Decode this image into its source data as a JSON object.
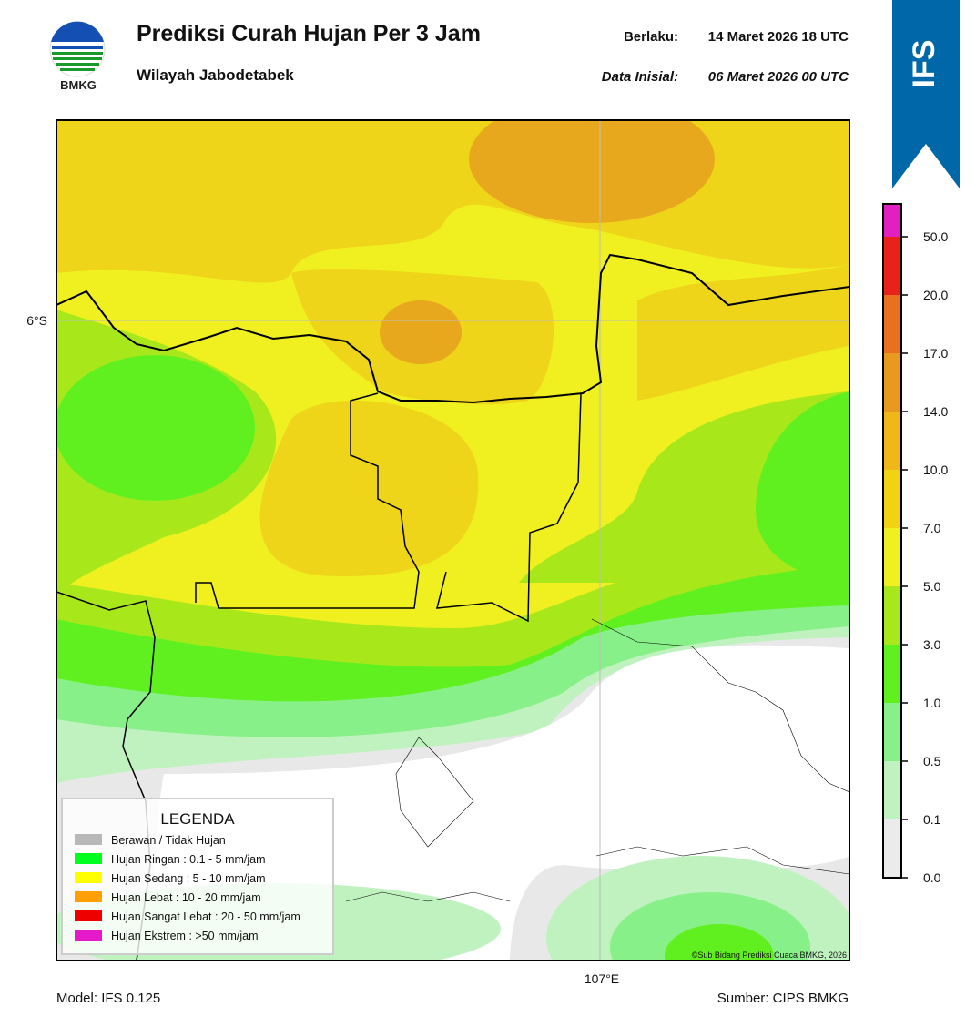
{
  "header": {
    "logo_text": "BMKG",
    "title": "Prediksi Curah Hujan Per 3 Jam",
    "subtitle": "Wilayah Jabodetabek",
    "valid_label": "Berlaku:",
    "valid_time": "14 Maret 2026 18 UTC",
    "init_label": "Data Inisial:",
    "init_time": "06 Maret 2026 00 UTC",
    "badge": "IFS"
  },
  "map": {
    "lat_label": "6°S",
    "lon_label": "107°E",
    "credit": "©Sub Bidang Prediksi Cuaca BMKG, 2026"
  },
  "legend": {
    "title": "LEGENDA",
    "items": [
      {
        "label": "Berawan / Tidak Hujan",
        "color": "#b8b8b8"
      },
      {
        "label": "Hujan Ringan : 0.1 - 5 mm/jam",
        "color": "#00ff1e"
      },
      {
        "label": "Hujan Sedang : 5 - 10 mm/jam",
        "color": "#ffff00"
      },
      {
        "label": "Hujan Lebat : 10 - 20 mm/jam",
        "color": "#ff9f00"
      },
      {
        "label": "Hujan Sangat Lebat : 20 - 50 mm/jam",
        "color": "#ee0000"
      },
      {
        "label": "Hujan Ekstrem : >50 mm/jam",
        "color": "#e619c8"
      }
    ]
  },
  "colorbar": {
    "labels": [
      "0.0",
      "0.1",
      "0.5",
      "1.0",
      "3.0",
      "5.0",
      "7.0",
      "10.0",
      "14.0",
      "17.0",
      "20.0",
      "50.0"
    ],
    "colors": [
      "#ebebeb",
      "#c0f2c0",
      "#88f088",
      "#60f020",
      "#a8e81a",
      "#f0f020",
      "#f0d414",
      "#efb818",
      "#e89a1e",
      "#e8701e",
      "#e8221a",
      "#e020c0"
    ]
  },
  "footer": {
    "model": "Model: IFS 0.125",
    "source": "Sumber: CIPS BMKG"
  }
}
